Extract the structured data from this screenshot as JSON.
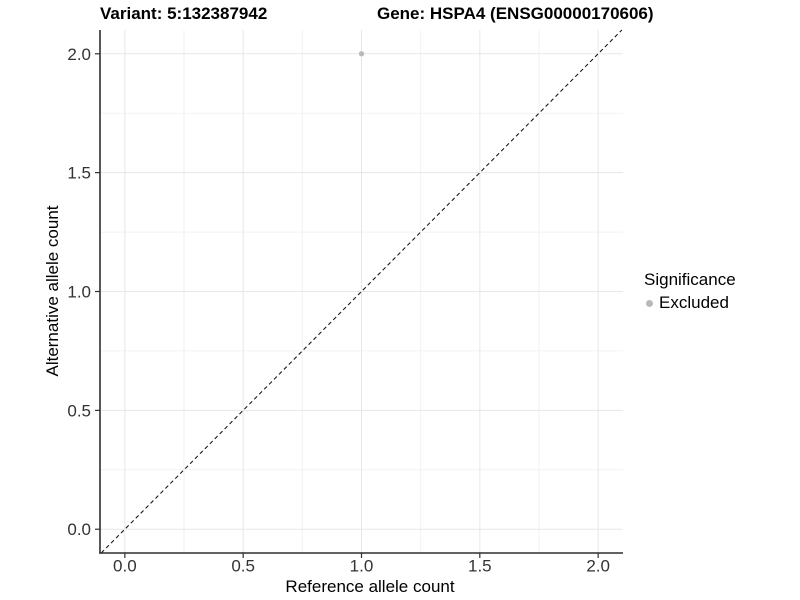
{
  "chart_data": {
    "type": "scatter",
    "title_left": "Variant: 5:132387942",
    "title_right": "Gene: HSPA4 (ENSG00000170606)",
    "xlabel": "Reference allele count",
    "ylabel": "Alternative allele count",
    "legend_title": "Significance",
    "legend_position": "right",
    "xlim": [
      -0.105,
      2.105
    ],
    "ylim": [
      -0.1,
      2.1
    ],
    "x_ticks": [
      0,
      0.5,
      1,
      1.5,
      2
    ],
    "x_tick_labels": [
      "0.0",
      "0.5",
      "1.0",
      "1.5",
      "2.0"
    ],
    "y_ticks": [
      0,
      0.5,
      1,
      1.5,
      2
    ],
    "y_tick_labels": [
      "0.0",
      "0.5",
      "1.0",
      "1.5",
      "2.0"
    ],
    "minor_ticks_x": [
      0.25,
      0.75,
      1.25,
      1.75
    ],
    "minor_ticks_y": [
      0.25,
      0.75,
      1.25,
      1.75
    ],
    "grid": "major+minor",
    "series": [
      {
        "name": "Excluded",
        "color": "#b9b9b9",
        "points": [
          [
            1.0,
            2.0
          ]
        ],
        "point_radius": 2.6
      }
    ],
    "reference_line": {
      "slope": 1,
      "intercept": 0,
      "style": "dashed",
      "color": "#1a1a1a"
    },
    "colors": {
      "major_grid": "#e7e7e7",
      "minor_grid": "#f2f2f2",
      "axis_line": "#2f2f2f",
      "tick_text": "#333333",
      "background": "#ffffff"
    }
  }
}
